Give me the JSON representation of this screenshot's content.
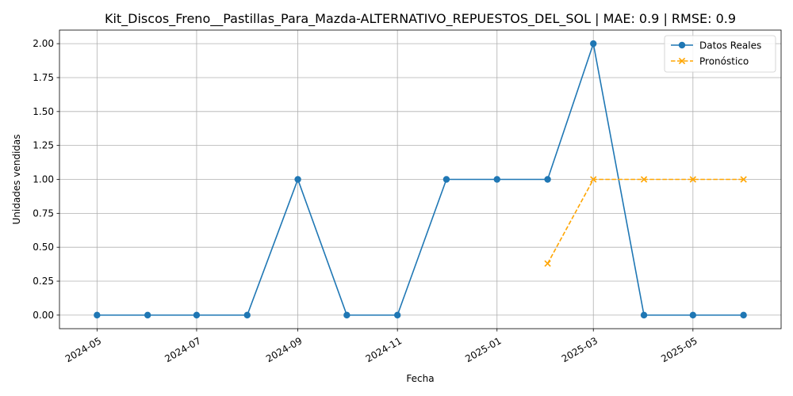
{
  "chart_data": {
    "type": "line",
    "title": "Kit_Discos_Freno__Pastillas_Para_Mazda-ALTERNATIVO_REPUESTOS_DEL_SOL | MAE: 0.9 | RMSE: 0.9",
    "xlabel": "Fecha",
    "ylabel": "Unidades vendidas",
    "xlim": [
      "2024-04-08",
      "2025-06-24"
    ],
    "ylim": [
      -0.1,
      2.1
    ],
    "x_ticks": [
      "2024-05",
      "2024-07",
      "2024-09",
      "2024-11",
      "2025-01",
      "2025-03",
      "2025-05"
    ],
    "y_ticks": [
      "0.00",
      "0.25",
      "0.50",
      "0.75",
      "1.00",
      "1.25",
      "1.50",
      "1.75",
      "2.00"
    ],
    "grid": true,
    "legend_position": "top-right",
    "series": [
      {
        "name": "Datos Reales",
        "color": "#1f77b4",
        "line_style": "solid",
        "marker": "circle",
        "x": [
          "2024-05-01",
          "2024-06-01",
          "2024-07-01",
          "2024-08-01",
          "2024-09-01",
          "2024-10-01",
          "2024-11-01",
          "2024-12-01",
          "2025-01-01",
          "2025-02-01",
          "2025-03-01",
          "2025-04-01",
          "2025-05-01",
          "2025-06-01"
        ],
        "values": [
          0,
          0,
          0,
          0,
          1,
          0,
          0,
          1,
          1,
          1,
          2,
          0,
          0,
          0
        ]
      },
      {
        "name": "Pronóstico",
        "color": "#ffa500",
        "line_style": "dashed",
        "marker": "x",
        "x": [
          "2025-02-01",
          "2025-03-01",
          "2025-04-01",
          "2025-05-01",
          "2025-06-01"
        ],
        "values": [
          0.38,
          1.0,
          1.0,
          1.0,
          1.0
        ]
      }
    ]
  }
}
